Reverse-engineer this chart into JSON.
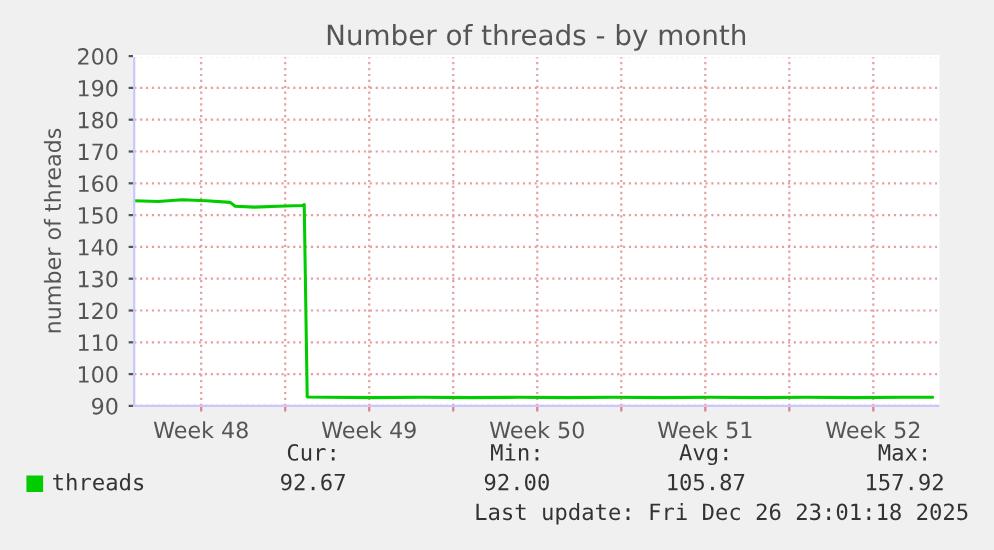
{
  "chart_data": {
    "type": "line",
    "title": "Number of threads - by month",
    "ylabel": "number of threads",
    "xlim": [
      "2025-11-23T17:00",
      "2025-12-27T05:00"
    ],
    "ylim": [
      90,
      200
    ],
    "xticks": [
      {
        "value": "2025-11-26T12:00",
        "label": "Week 48"
      },
      {
        "value": "2025-11-30T00:00",
        "label": null
      },
      {
        "value": "2025-12-03T12:00",
        "label": "Week 49"
      },
      {
        "value": "2025-12-07T00:00",
        "label": null
      },
      {
        "value": "2025-12-10T12:00",
        "label": "Week 50"
      },
      {
        "value": "2025-12-14T00:00",
        "label": null
      },
      {
        "value": "2025-12-17T12:00",
        "label": "Week 51"
      },
      {
        "value": "2025-12-21T00:00",
        "label": null
      },
      {
        "value": "2025-12-24T12:00",
        "label": "Week 52"
      }
    ],
    "yticks": [
      90,
      100,
      110,
      120,
      130,
      140,
      150,
      160,
      170,
      180,
      190,
      200
    ],
    "grid": true,
    "legend": "bottom",
    "series": [
      {
        "name": "threads",
        "color": "#00cc00",
        "x": [
          "2025-11-23T17:00",
          "2025-11-24T17:00",
          "2025-11-25T17:00",
          "2025-11-26T17:00",
          "2025-11-27T17:00",
          "2025-11-27T22:00",
          "2025-11-28T17:00",
          "2025-11-29T17:00",
          "2025-11-30T17:00",
          "2025-11-30T19:00",
          "2025-11-30T22:00",
          "2025-12-01T17:00",
          "2025-12-03T17:00",
          "2025-12-05T17:00",
          "2025-12-07T17:00",
          "2025-12-09T17:00",
          "2025-12-11T17:00",
          "2025-12-13T17:00",
          "2025-12-15T17:00",
          "2025-12-17T17:00",
          "2025-12-19T17:00",
          "2025-12-21T17:00",
          "2025-12-23T17:00",
          "2025-12-25T17:00",
          "2025-12-26T23:00"
        ],
        "values": [
          154.5,
          154.3,
          154.8,
          154.5,
          154,
          152.8,
          152.5,
          152.8,
          153,
          153.3,
          92.8,
          92.7,
          92.6,
          92.7,
          92.6,
          92.7,
          92.6,
          92.7,
          92.6,
          92.7,
          92.6,
          92.7,
          92.6,
          92.7,
          92.7
        ]
      }
    ],
    "annotations": [
      "Cur:",
      "92.67",
      "Min:",
      "92.00",
      "Avg:",
      "105.87",
      "Max:",
      "157.92",
      "Last update: Fri Dec 26 23:01:18 2025"
    ]
  }
}
